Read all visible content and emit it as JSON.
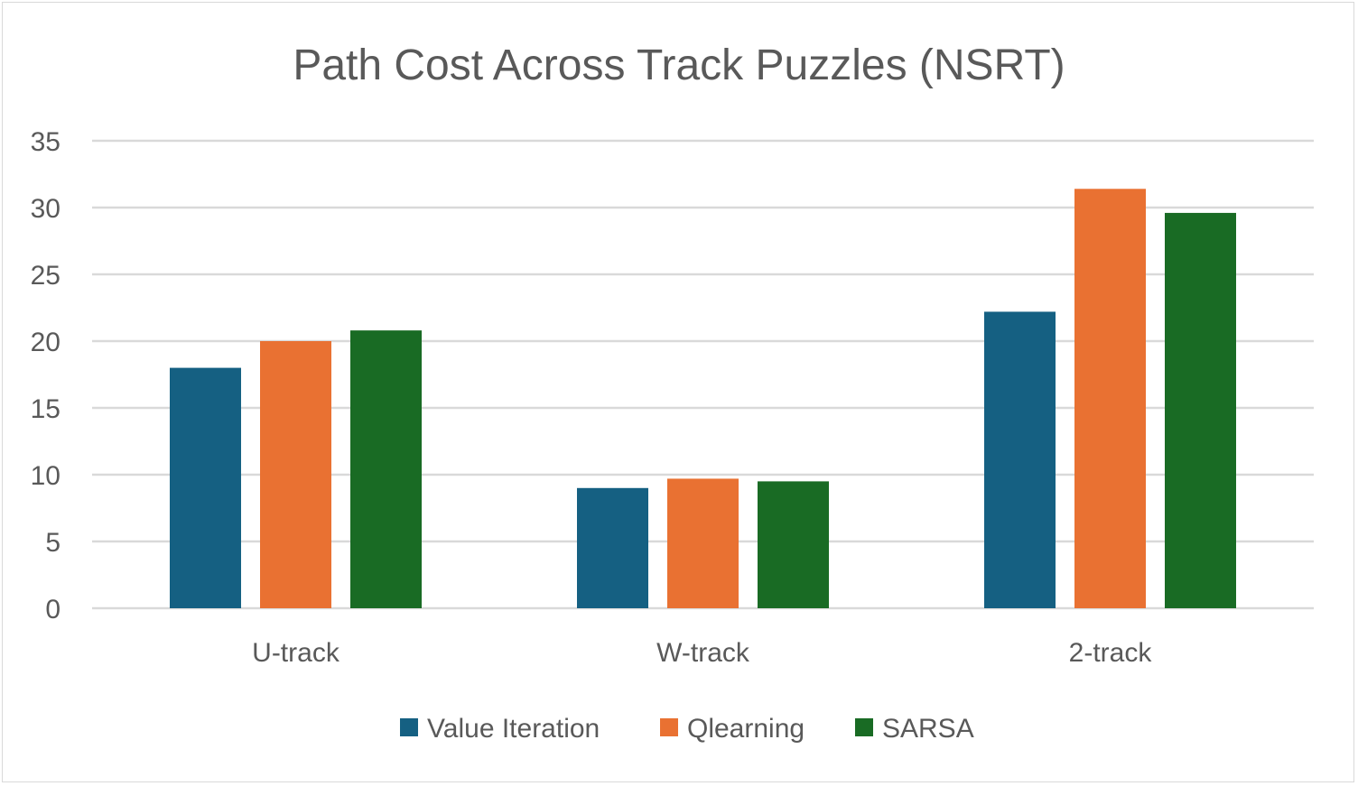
{
  "chart_data": {
    "type": "bar",
    "title": "Path Cost Across Track Puzzles (NSRT)",
    "xlabel": "",
    "ylabel": "",
    "categories": [
      "U-track",
      "W-track",
      "2-track"
    ],
    "series": [
      {
        "name": "Value Iteration",
        "color": "#156082",
        "values": [
          18,
          9,
          22.2
        ]
      },
      {
        "name": "Qlearning",
        "color": "#E97132",
        "values": [
          20,
          9.7,
          31.4
        ]
      },
      {
        "name": "SARSA",
        "color": "#196B24",
        "values": [
          20.8,
          9.5,
          29.6
        ]
      }
    ],
    "ylim": [
      0,
      35
    ],
    "yticks": [
      0,
      5,
      10,
      15,
      20,
      25,
      30,
      35
    ],
    "grid": true,
    "legend": "bottom"
  }
}
